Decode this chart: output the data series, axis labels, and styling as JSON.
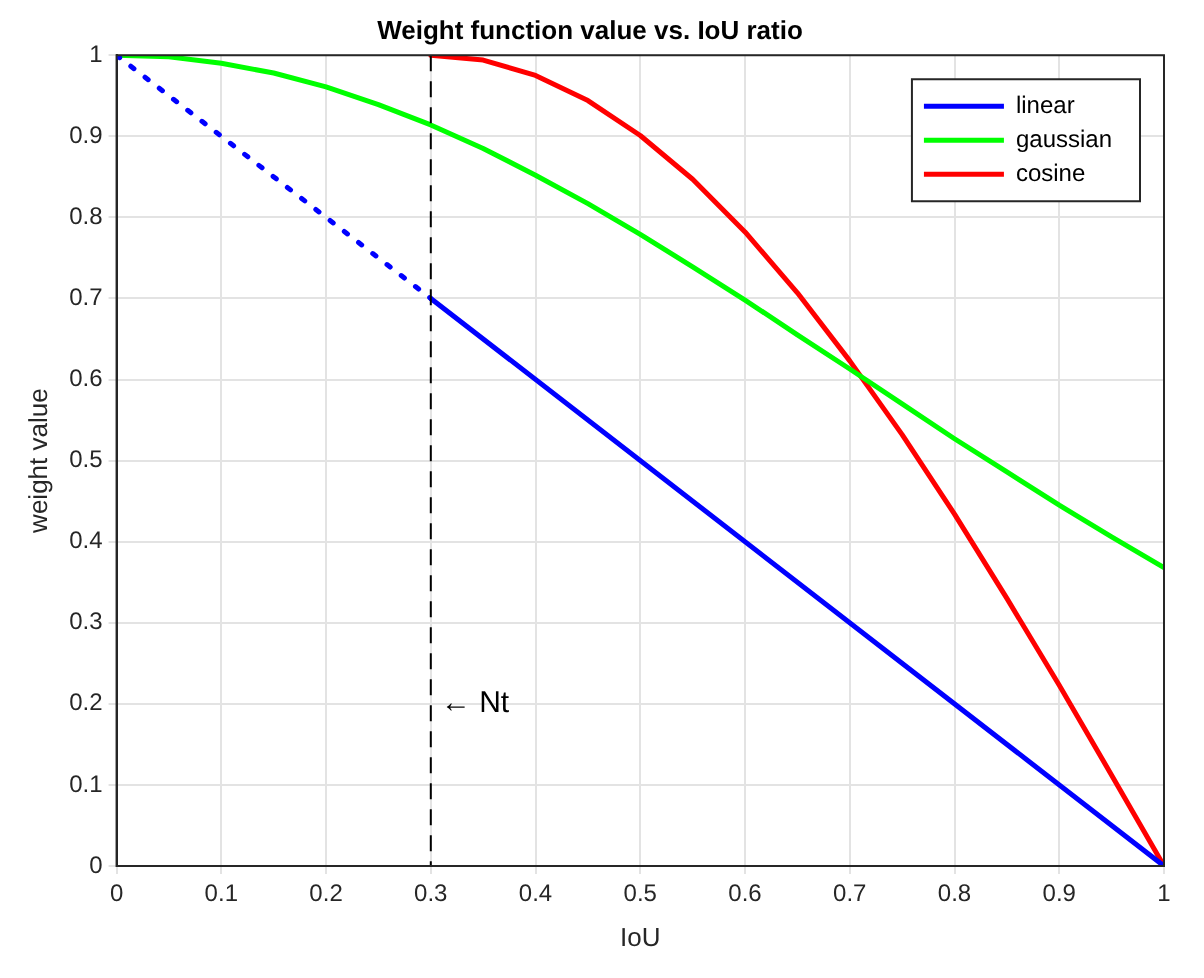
{
  "chart_data": {
    "type": "line",
    "title": "Weight function value vs. IoU ratio",
    "xlabel": "IoU",
    "ylabel": "weight value",
    "xlim": [
      0,
      1
    ],
    "xticks": [
      0,
      0.1,
      0.2,
      0.3,
      0.4,
      0.5,
      0.6,
      0.7,
      0.8,
      0.9,
      1
    ],
    "ylim": [
      0,
      1
    ],
    "yticks": [
      0,
      0.1,
      0.2,
      0.3,
      0.4,
      0.5,
      0.6,
      0.7,
      0.8,
      0.9,
      1
    ],
    "grid": true,
    "legend": "top right",
    "marker": "none",
    "series": [
      {
        "color": "#0000ff",
        "line_style": "dotted",
        "x": [
          0,
          0.3
        ],
        "values": [
          1,
          0.7
        ]
      },
      {
        "name": "linear",
        "color": "#0000ff",
        "line_style": "solid",
        "x": [
          0.3,
          1
        ],
        "values": [
          0.7,
          0
        ]
      },
      {
        "name": "gaussian",
        "color": "#00ff00",
        "line_style": "solid",
        "x": [
          0,
          0.05,
          0.1,
          0.15,
          0.2,
          0.25,
          0.3,
          0.35,
          0.4,
          0.45,
          0.5,
          0.55,
          0.6,
          0.65,
          0.7,
          0.75,
          0.8,
          0.85,
          0.9,
          0.95,
          1
        ],
        "values": [
          1,
          0.998,
          0.99,
          0.978,
          0.961,
          0.939,
          0.914,
          0.885,
          0.852,
          0.817,
          0.779,
          0.739,
          0.698,
          0.655,
          0.613,
          0.57,
          0.527,
          0.486,
          0.445,
          0.406,
          0.368
        ]
      },
      {
        "name": "cosine",
        "color": "#ff0000",
        "line_style": "solid",
        "x": [
          0.3,
          0.35,
          0.4,
          0.45,
          0.5,
          0.55,
          0.6,
          0.65,
          0.7,
          0.75,
          0.8,
          0.85,
          0.9,
          0.95,
          1
        ],
        "values": [
          1,
          0.994,
          0.975,
          0.944,
          0.901,
          0.847,
          0.782,
          0.707,
          0.623,
          0.532,
          0.434,
          0.33,
          0.223,
          0.112,
          0
        ]
      }
    ],
    "ref_lines": [
      {
        "axis": "x",
        "value": 0.3,
        "label": "← Nt",
        "color": "#000000",
        "line_style": "dashed"
      }
    ]
  }
}
